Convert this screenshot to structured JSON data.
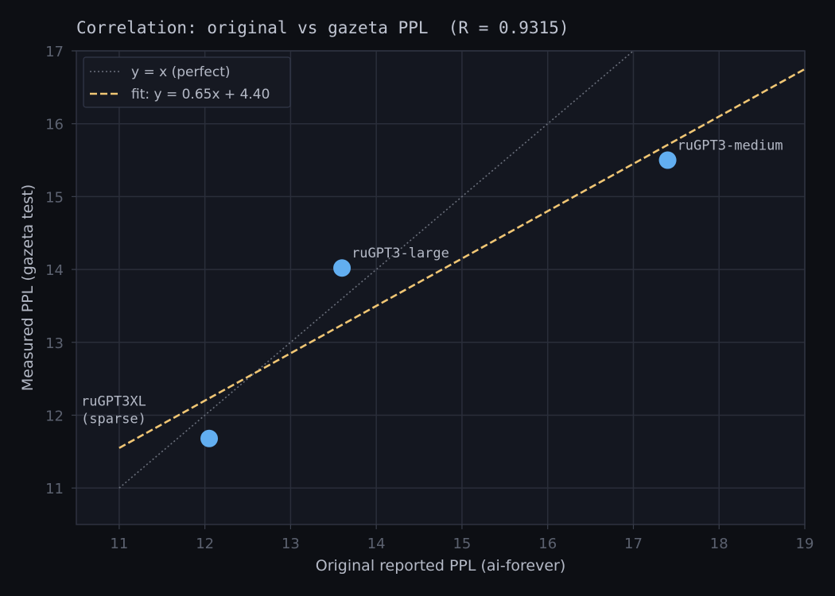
{
  "chart_data": {
    "type": "scatter",
    "title": "Correlation: original vs gazeta PPL  (R = 0.9315)",
    "xlabel": "Original reported PPL (ai-forever)",
    "ylabel": "Measured PPL (gazeta test)",
    "xlim": [
      10.5,
      19
    ],
    "ylim": [
      10.5,
      17
    ],
    "xticks": [
      11,
      12,
      13,
      14,
      15,
      16,
      17,
      18,
      19
    ],
    "yticks": [
      11,
      12,
      13,
      14,
      15,
      16,
      17
    ],
    "grid": true,
    "legend_position": "top-left",
    "points": [
      {
        "label": "ruGPT3XL\n(sparse)",
        "x": 12.05,
        "y": 11.68
      },
      {
        "label": "ruGPT3-large",
        "x": 13.6,
        "y": 14.02
      },
      {
        "label": "ruGPT3-medium",
        "x": 17.4,
        "y": 15.5
      }
    ],
    "reference_line": {
      "name": "y = x (perfect)",
      "slope": 1,
      "intercept": 0,
      "x_range": [
        11,
        17
      ]
    },
    "fit_line": {
      "name": "fit: y = 0.65x + 4.40",
      "slope": 0.65,
      "intercept": 4.4,
      "x_range": [
        11,
        19
      ]
    },
    "colors": {
      "point": "#62aef0",
      "fit": "#f0c674",
      "reference": "#6b707c",
      "grid": "#2a2e3a",
      "plot_bg": "#141720",
      "page_bg": "#0d0f14"
    }
  }
}
